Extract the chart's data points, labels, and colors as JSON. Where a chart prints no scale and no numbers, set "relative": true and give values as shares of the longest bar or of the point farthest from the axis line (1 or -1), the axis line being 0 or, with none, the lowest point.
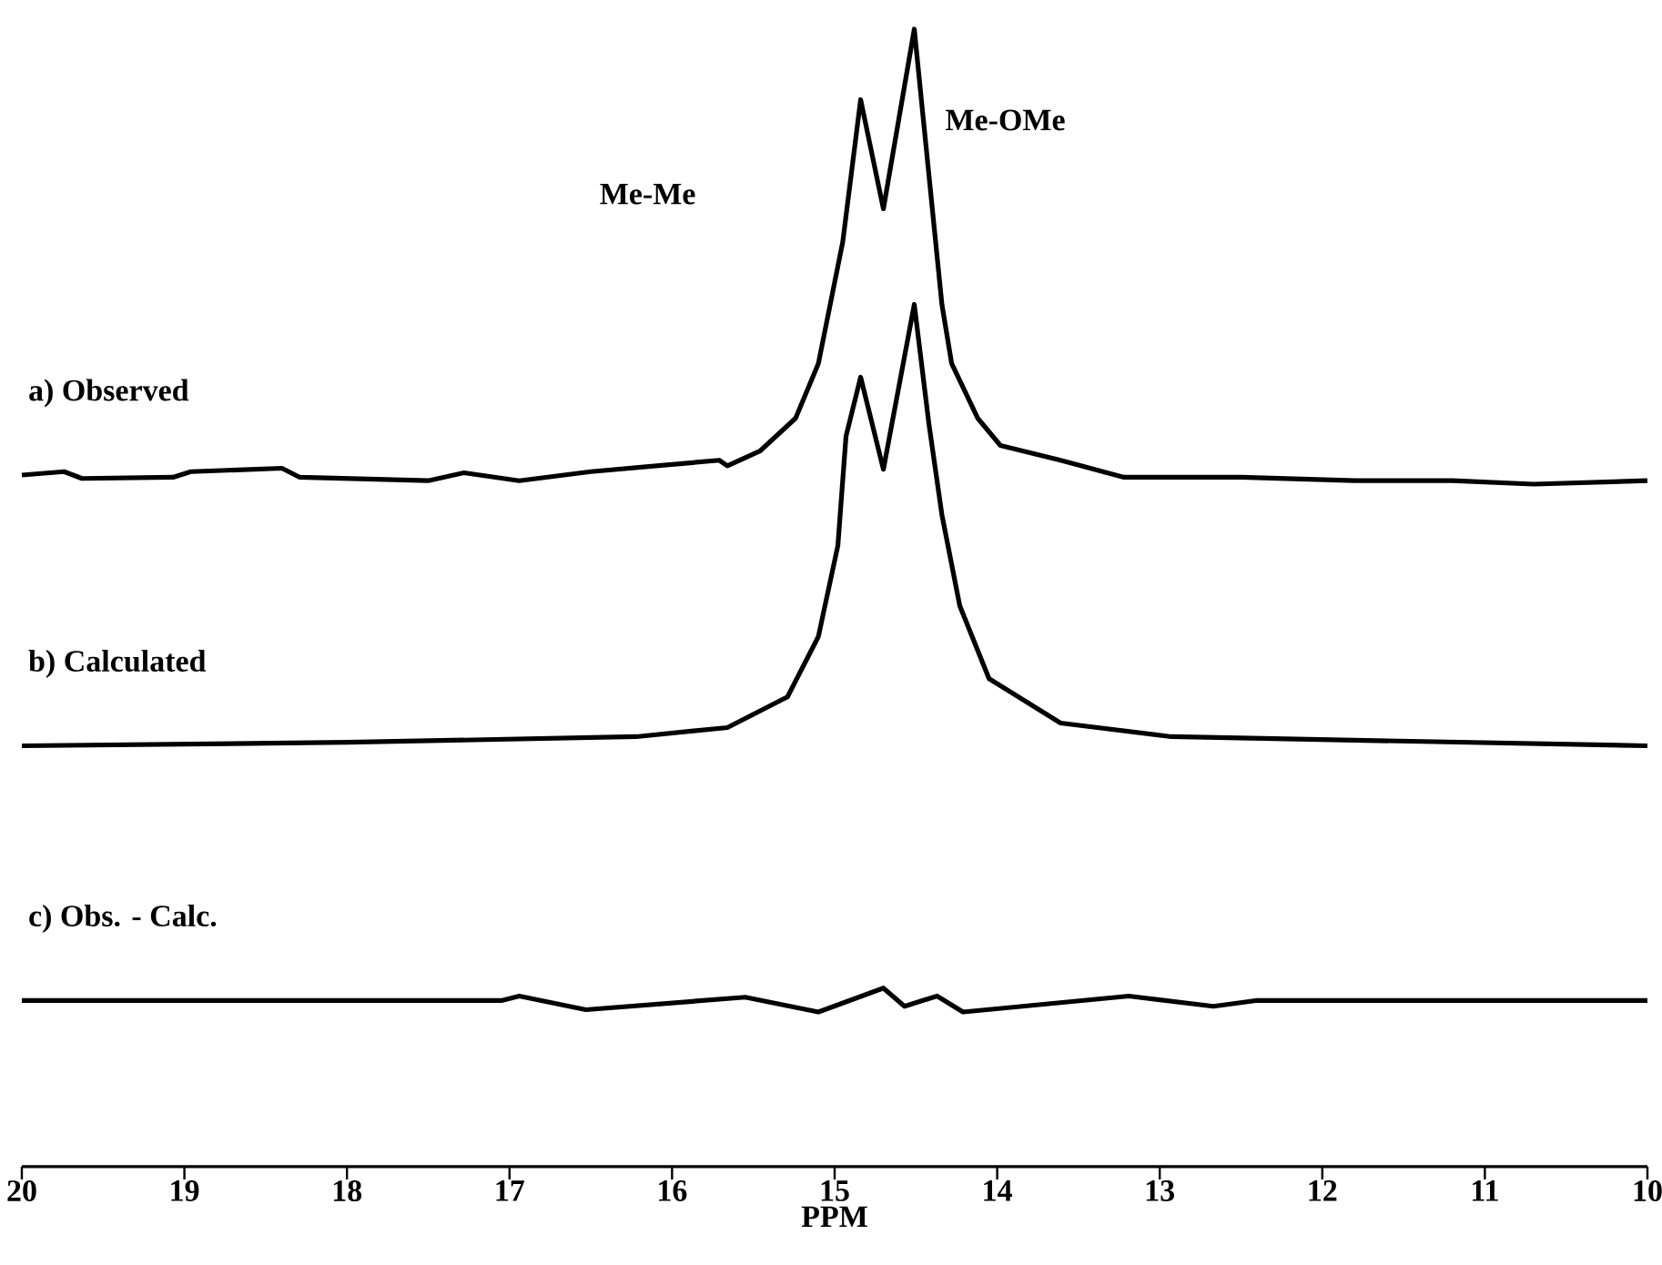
{
  "chart_data": {
    "type": "line",
    "relative": true,
    "xlabel": "PPM",
    "xlim": [
      20,
      10
    ],
    "xticks": [
      20,
      19,
      18,
      17,
      16,
      15,
      14,
      13,
      12,
      11,
      10
    ],
    "legend": false,
    "marker": "none",
    "series": [
      {
        "name": "a) Observed",
        "color": "#000000",
        "x": [
          20.0,
          19.74,
          19.63,
          19.07,
          18.96,
          18.4,
          18.29,
          17.5,
          17.28,
          16.94,
          16.5,
          15.71,
          15.66,
          15.46,
          15.24,
          15.1,
          14.95,
          14.84,
          14.7,
          14.51,
          14.34,
          14.28,
          14.12,
          13.98,
          13.61,
          13.22,
          12.5,
          11.8,
          11.2,
          10.7,
          10.0
        ],
        "values": [
          0.608,
          0.611,
          0.605,
          0.606,
          0.611,
          0.614,
          0.606,
          0.603,
          0.61,
          0.603,
          0.611,
          0.621,
          0.616,
          0.629,
          0.658,
          0.706,
          0.813,
          0.938,
          0.842,
          1.0,
          0.758,
          0.706,
          0.658,
          0.634,
          0.621,
          0.606,
          0.606,
          0.603,
          0.603,
          0.6,
          0.603
        ]
      },
      {
        "name": "b) Calculated",
        "color": "#000000",
        "x": [
          20.0,
          18.0,
          16.22,
          15.66,
          15.29,
          15.1,
          14.98,
          14.93,
          14.84,
          14.7,
          14.51,
          14.42,
          14.34,
          14.23,
          14.05,
          13.61,
          12.93,
          10.0
        ],
        "values": [
          0.37,
          0.373,
          0.378,
          0.386,
          0.413,
          0.466,
          0.546,
          0.642,
          0.694,
          0.613,
          0.758,
          0.653,
          0.573,
          0.493,
          0.429,
          0.39,
          0.378,
          0.37
        ]
      },
      {
        "name": "c) Obs. - Calc.",
        "color": "#000000",
        "x": [
          20.0,
          17.05,
          16.94,
          16.53,
          15.55,
          15.1,
          14.7,
          14.57,
          14.37,
          14.21,
          13.19,
          12.67,
          12.41,
          10.0
        ],
        "values": [
          0.146,
          0.146,
          0.15,
          0.138,
          0.149,
          0.136,
          0.157,
          0.141,
          0.15,
          0.136,
          0.15,
          0.141,
          0.146,
          0.146
        ]
      }
    ],
    "annotations": [
      "Me-Me",
      "Me-OMe"
    ]
  }
}
